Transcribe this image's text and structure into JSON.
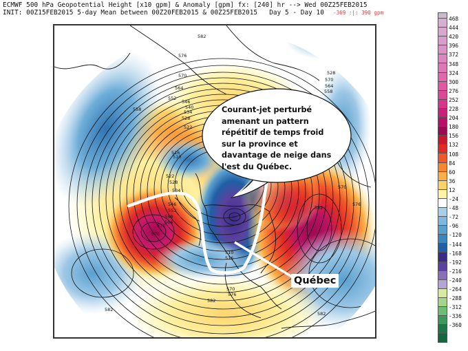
{
  "header": {
    "line1": "ECMWF 500 hPa Geopotential Height [x10 gpm] & Anomaly [gpm] fx: [240] hr --> Wed 00Z25FEB2015",
    "line2": "INIT: 00Z15FEB2015 5-day Mean between 00Z20FEB2015 & 00Z25FEB2015   Day 5 - Day 10",
    "anomaly_range": "-369 :|: 390 gpm",
    "anomaly_range_color": "#e23a3a"
  },
  "map": {
    "projection": "polar stereographic (Northern Hemisphere)",
    "contour_labels": [
      {
        "text": "582",
        "pos": "northern Russia"
      },
      {
        "text": "576",
        "pos": "Siberia"
      },
      {
        "text": "570",
        "pos": "Siberia"
      },
      {
        "text": "564",
        "pos": "Siberia"
      },
      {
        "text": "558",
        "pos": "east Siberia"
      },
      {
        "text": "552",
        "pos": "east Siberia"
      },
      {
        "text": "546",
        "pos": "Arctic"
      },
      {
        "text": "540",
        "pos": "Arctic"
      },
      {
        "text": "534",
        "pos": "Arctic"
      },
      {
        "text": "528",
        "pos": "Arctic"
      },
      {
        "text": "522",
        "pos": "Arctic"
      },
      {
        "text": "516",
        "pos": "Arctic low"
      },
      {
        "text": "510",
        "pos": "Arctic low"
      },
      {
        "text": "528",
        "pos": "Scandinavia"
      },
      {
        "text": "570",
        "pos": "Scandinavia"
      },
      {
        "text": "564",
        "pos": "Scandinavia"
      },
      {
        "text": "558",
        "pos": "Scandinavia"
      },
      {
        "text": "522",
        "pos": "Alaska"
      },
      {
        "text": "528",
        "pos": "Alaska"
      },
      {
        "text": "534",
        "pos": "Alaska"
      },
      {
        "text": "546",
        "pos": "western Canada"
      },
      {
        "text": "552",
        "pos": "western Canada"
      },
      {
        "text": "558",
        "pos": "western Canada"
      },
      {
        "text": "564",
        "pos": "western Canada"
      },
      {
        "text": "570",
        "pos": "NE Pacific ridge"
      },
      {
        "text": "576",
        "pos": "NE Pacific ridge"
      },
      {
        "text": "510",
        "pos": "Quebec trough"
      },
      {
        "text": "516",
        "pos": "Quebec trough"
      },
      {
        "text": "582",
        "pos": "North Atlantic ridge"
      },
      {
        "text": "570",
        "pos": "Europe"
      },
      {
        "text": "576",
        "pos": "Europe"
      },
      {
        "text": "582",
        "pos": "North Pacific"
      },
      {
        "text": "582",
        "pos": "Gulf of Mexico"
      },
      {
        "text": "582",
        "pos": "Atlantic south"
      },
      {
        "text": "570",
        "pos": "eastern US"
      },
      {
        "text": "576",
        "pos": "eastern US"
      }
    ]
  },
  "colorbar": {
    "labels": [
      "468",
      "444",
      "420",
      "396",
      "372",
      "348",
      "324",
      "300",
      "276",
      "252",
      "228",
      "204",
      "180",
      "156",
      "132",
      "108",
      "84",
      "60",
      "36",
      "12",
      "-24",
      "-48",
      "-72",
      "-96",
      "-120",
      "-144",
      "-168",
      "-192",
      "-216",
      "-240",
      "-264",
      "-288",
      "-312",
      "-336",
      "-360"
    ],
    "colors": [
      "#cfb9cf",
      "#d8aed3",
      "#d9a5cf",
      "#d79ccb",
      "#d793c7",
      "#d98ac2",
      "#dc80bd",
      "#dc74b5",
      "#de69ad",
      "#de5ea5",
      "#df549d",
      "#dd4893",
      "#d93d88",
      "#d33180",
      "#cc2777",
      "#c51c6e",
      "#bb1266",
      "#ab0c58",
      "#9e0a4e",
      "#8c0641",
      "#cc1f2f",
      "#d9262b",
      "#e52f27",
      "#ee4324",
      "#f25a24",
      "#f57026",
      "#f7862b",
      "#f99b37",
      "#fbae45",
      "#fcc258",
      "#fdd56c",
      "#fde57f",
      "#feef8f",
      "#fef6a2",
      "#ffffff",
      "#ffffff",
      "#b3d3ea",
      "#9dc8e6",
      "#87bce0",
      "#6faed8",
      "#5b9fcf",
      "#4b91c6",
      "#3c83bd",
      "#2f74b3",
      "#2466a8",
      "#1c579c",
      "#174a8e",
      "#3a2a84",
      "#4a3390",
      "#573d9a",
      "#6448a3",
      "#7457ad",
      "#8468b6",
      "#9479bf",
      "#a38ac7",
      "#b39bd0",
      "#c3acd9",
      "#d5e8a3",
      "#c2e39a",
      "#a8d98e",
      "#8fcd84",
      "#72bf77",
      "#5bb06c",
      "#46a061",
      "#359157",
      "#27824d",
      "#1d7445",
      "#15663e"
    ],
    "segments": [
      {
        "from_label": "468",
        "color": "#d6b0d3"
      },
      {
        "from_label": "444",
        "color": "#d9a7d0"
      },
      {
        "from_label": "420",
        "color": "#d99dcb"
      },
      {
        "from_label": "396",
        "color": "#da93c6"
      },
      {
        "from_label": "372",
        "color": "#dc86bf"
      },
      {
        "from_label": "348",
        "color": "#dd77b6"
      },
      {
        "from_label": "324",
        "color": "#de68ad"
      },
      {
        "from_label": "300",
        "color": "#de5aa3"
      },
      {
        "from_label": "276",
        "color": "#dc4997"
      },
      {
        "from_label": "252",
        "color": "#d5368a"
      },
      {
        "from_label": "228",
        "color": "#c9217a"
      },
      {
        "from_label": "204",
        "color": "#b6106a"
      },
      {
        "from_label": "180",
        "color": "#9d0a52"
      },
      {
        "from_label": "156",
        "color": "#c81830"
      },
      {
        "from_label": "132",
        "color": "#df2a28"
      },
      {
        "from_label": "108",
        "color": "#f0582a"
      },
      {
        "from_label": "84",
        "color": "#f7862f"
      },
      {
        "from_label": "60",
        "color": "#fbae45"
      },
      {
        "from_label": "36",
        "color": "#fdd26a"
      },
      {
        "from_label": "12",
        "color": "#fef3a2"
      },
      {
        "from_label": "-24",
        "color": "#ffffff"
      },
      {
        "from_label": "-48",
        "color": "#a8cfe8"
      },
      {
        "from_label": "-72",
        "color": "#7fb8de"
      },
      {
        "from_label": "-96",
        "color": "#5aa0cf"
      },
      {
        "from_label": "-120",
        "color": "#3a86bf"
      },
      {
        "from_label": "-144",
        "color": "#1f5fa4"
      },
      {
        "from_label": "-168",
        "color": "#3b2a86"
      },
      {
        "from_label": "-192",
        "color": "#5c419e"
      },
      {
        "from_label": "-216",
        "color": "#8a6fba"
      },
      {
        "from_label": "-240",
        "color": "#b3a6d6"
      },
      {
        "from_label": "-264",
        "color": "#d9eaa0"
      },
      {
        "from_label": "-288",
        "color": "#a3d68b"
      },
      {
        "from_label": "-312",
        "color": "#6ebd75"
      },
      {
        "from_label": "-336",
        "color": "#3d985b"
      },
      {
        "from_label": "-360",
        "color": "#1f7647"
      },
      {
        "from_label": "end",
        "color": "#15663e"
      }
    ]
  },
  "annotation": {
    "bubble_lines": [
      "Courant-jet perturbé",
      "amenant un pattern",
      "répétitif de temps froid",
      "sur la province et",
      "davantage de neige dans",
      "l'est du Québec."
    ],
    "location_label": "Québec"
  }
}
